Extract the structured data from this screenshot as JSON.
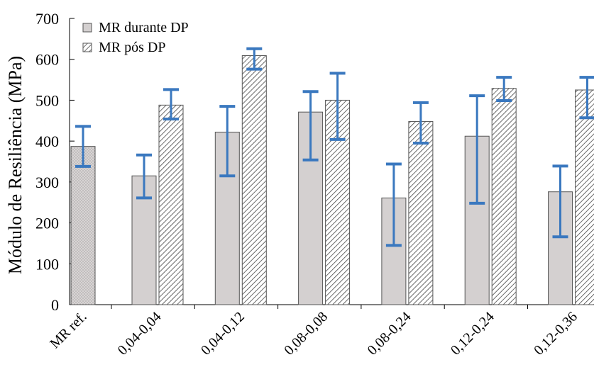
{
  "chart_data": {
    "type": "bar",
    "ylabel": "Módulo de Resiliência (MPa)",
    "ylim": [
      0,
      700
    ],
    "yticks": [
      0,
      100,
      200,
      300,
      400,
      500,
      600,
      700
    ],
    "grid": false,
    "legend_position": "top-left",
    "categories": [
      "MR ref.",
      "0,04-0,04",
      "0,04-0,12",
      "0,08-0,08",
      "0,08-0,24",
      "0,12-0,24",
      "0,12-0,36"
    ],
    "reference": {
      "category": "MR ref.",
      "value": 387,
      "err_low": 338,
      "err_high": 436
    },
    "series": [
      {
        "name": "MR durante DP",
        "pattern": "solid-gray",
        "values": [
          null,
          315,
          422,
          471,
          261,
          412,
          276
        ],
        "err_low": [
          null,
          261,
          315,
          354,
          145,
          248,
          166
        ],
        "err_high": [
          null,
          366,
          485,
          521,
          344,
          511,
          339
        ]
      },
      {
        "name": "MR pós DP",
        "pattern": "hatched",
        "values": [
          null,
          488,
          609,
          500,
          448,
          529,
          525
        ],
        "err_low": [
          null,
          454,
          576,
          404,
          395,
          499,
          457
        ],
        "err_high": [
          null,
          526,
          626,
          566,
          494,
          556,
          556
        ]
      }
    ],
    "colors": {
      "bar_fill": "#d4d0d0",
      "bar_stroke": "#555555",
      "error_bar": "#3a78bf",
      "hatch": "#444444"
    }
  }
}
